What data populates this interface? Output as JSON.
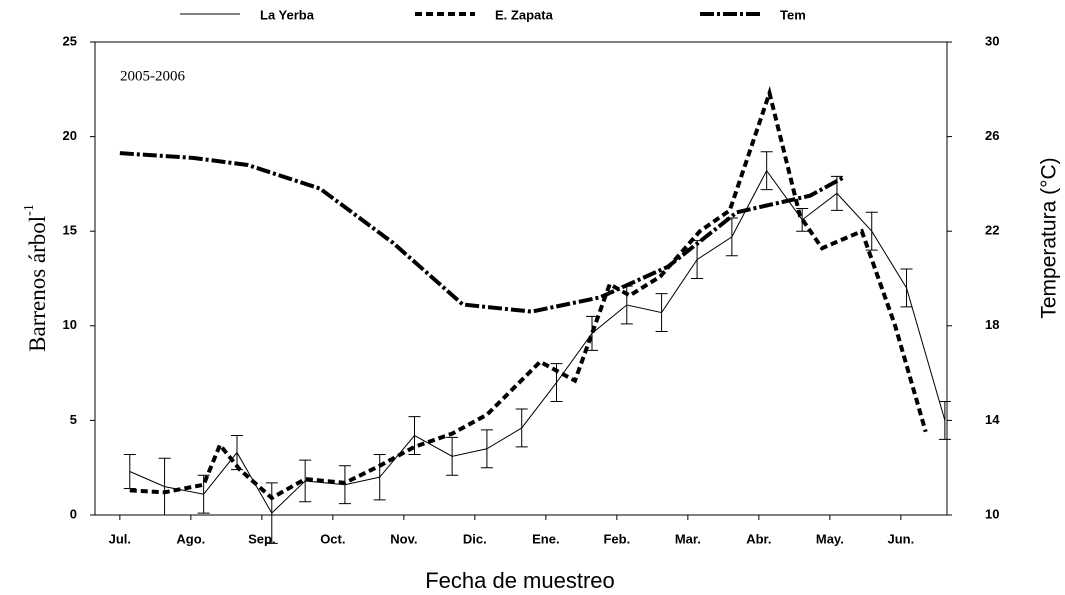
{
  "chart_data": {
    "type": "line",
    "annotation": "2005-2006",
    "x_label": "Fecha de muestreo",
    "y_label": "Barrenos  árbol",
    "y_label_sup": "-1",
    "y2_label": "Temperatura (°C)",
    "xlim": [
      -0.35,
      11.65
    ],
    "xticks": [
      {
        "value": 0,
        "label": "Jul."
      },
      {
        "value": 1,
        "label": "Ago."
      },
      {
        "value": 2,
        "label": "Sep."
      },
      {
        "value": 3,
        "label": "Oct."
      },
      {
        "value": 4,
        "label": "Nov."
      },
      {
        "value": 5,
        "label": "Dic."
      },
      {
        "value": 6,
        "label": "Ene."
      },
      {
        "value": 7,
        "label": "Feb."
      },
      {
        "value": 8,
        "label": "Mar."
      },
      {
        "value": 9,
        "label": "Abr."
      },
      {
        "value": 10,
        "label": "May."
      },
      {
        "value": 11,
        "label": "Jun."
      }
    ],
    "ylim": [
      0,
      25
    ],
    "yticks": [
      0,
      5,
      10,
      15,
      20,
      25
    ],
    "y2lim": [
      10,
      30
    ],
    "y2ticks": [
      10,
      14,
      18,
      22,
      26,
      30
    ],
    "series": [
      {
        "name": "La Yerba",
        "color": "#000000",
        "style": "solid",
        "x": [
          0.14,
          0.63,
          1.18,
          1.65,
          2.14,
          2.61,
          3.17,
          3.66,
          4.15,
          4.68,
          5.17,
          5.66,
          6.15,
          6.65,
          7.14,
          7.63,
          8.13,
          8.62,
          9.11,
          9.61,
          10.1,
          10.59,
          11.08,
          11.62
        ],
        "values": [
          2.3,
          1.5,
          1.1,
          3.3,
          0.1,
          1.8,
          1.6,
          2.0,
          4.2,
          3.1,
          3.5,
          4.6,
          7.0,
          9.6,
          11.1,
          10.7,
          13.5,
          14.7,
          18.2,
          15.6,
          17.0,
          15.0,
          12.0,
          5.0
        ],
        "errors": [
          0.9,
          1.5,
          1.0,
          0.9,
          1.6,
          1.1,
          1.0,
          1.2,
          1.0,
          1.0,
          1.0,
          1.0,
          1.0,
          0.9,
          1.0,
          1.0,
          1.0,
          1.0,
          1.0,
          0.6,
          0.9,
          1.0,
          1.0,
          1.0
        ]
      },
      {
        "name": "E. Zapata",
        "color": "#000000",
        "style": "dashed",
        "x": [
          0.14,
          0.63,
          1.18,
          1.41,
          1.69,
          2.14,
          2.61,
          3.17,
          3.66,
          4.15,
          4.68,
          5.17,
          5.92,
          6.41,
          6.9,
          7.18,
          7.61,
          8.17,
          8.59,
          9.15,
          9.58,
          9.89,
          10.45,
          10.92,
          11.35
        ],
        "values": [
          1.3,
          1.2,
          1.6,
          3.7,
          2.4,
          0.9,
          1.9,
          1.7,
          2.6,
          3.6,
          4.3,
          5.3,
          8.1,
          7.1,
          12.2,
          11.6,
          12.6,
          15.0,
          16.1,
          22.3,
          15.8,
          14.1,
          15.0,
          10.0,
          4.4
        ]
      },
      {
        "name": "Tem",
        "color": "#000000",
        "style": "dashdot",
        "axis": "y2",
        "x": [
          0,
          1.03,
          1.8,
          2.82,
          3.85,
          4.83,
          5.8,
          6.76,
          7.72,
          8.69,
          9.72,
          10.21
        ],
        "values": [
          25.3,
          25.1,
          24.8,
          23.8,
          21.5,
          18.9,
          18.6,
          19.2,
          20.5,
          22.8,
          23.5,
          24.3
        ]
      }
    ]
  }
}
